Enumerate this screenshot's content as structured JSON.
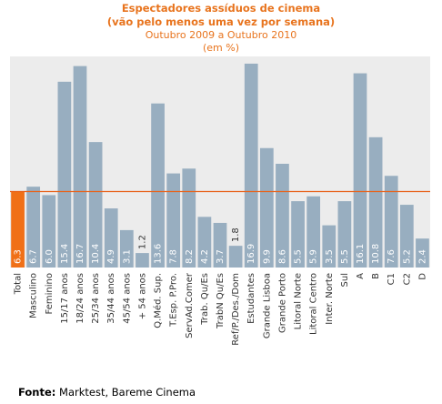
{
  "title": {
    "line1": "Espectadores assíduos de cinema",
    "line2": "(vão pelo menos uma vez por semana)",
    "line3": "Outubro 2009 a Outubro 2010",
    "line4": "(em %)"
  },
  "source": {
    "label": "Fonte:",
    "text": " Marktest, Bareme Cinema"
  },
  "colors": {
    "bar": "#98aec0",
    "highlight": "#f07017",
    "reference_line": "#e8621a",
    "title": "#e8741e",
    "plot_background": "#ececec",
    "value_label": "#ffffff"
  },
  "chart_data": {
    "type": "bar",
    "categories": [
      "Total",
      "Masculino",
      "Feminino",
      "15/17 anos",
      "18/24 anos",
      "25/34 anos",
      "35/44 anos",
      "45/54 anos",
      "+ 54  anos",
      "Q.Méd. Sup.",
      "T.Esp. P.Pro.",
      "ServAd.Comer",
      "Trab. Qu/Es",
      "TrabN Qu/Es",
      "Ref/P./Des./Dom",
      "Estudantes",
      "Grande Lisboa",
      "Grande Porto",
      "Litoral Norte",
      "Litoral Centro",
      "Inter. Norte",
      "Sul",
      "A",
      "B",
      "C1",
      "C2",
      "D"
    ],
    "values": [
      6.3,
      6.7,
      6.0,
      15.4,
      16.7,
      10.4,
      4.9,
      3.1,
      1.2,
      13.6,
      7.8,
      8.2,
      4.2,
      3.7,
      1.8,
      16.9,
      9.9,
      8.6,
      5.5,
      5.9,
      3.5,
      5.5,
      16.1,
      10.8,
      7.6,
      5.2,
      2.4
    ],
    "value_labels": [
      "6.3",
      "6.7",
      "6.0",
      "15.4",
      "16.7",
      "10.4",
      "4.9",
      "3.1",
      "1.2",
      "13.6",
      "7.8",
      "8.2",
      "4.2",
      "3.7",
      "1.8",
      "16.9",
      "9.9",
      "8.6",
      "5.5",
      "5.9",
      "3.5",
      "5.5",
      "16.1",
      "10.8",
      "7.6",
      "5.2",
      "2.4"
    ],
    "highlight_index": 0,
    "reference_value": 6.3,
    "ylim": [
      0,
      17.5
    ],
    "grid": false,
    "legend": "none"
  }
}
